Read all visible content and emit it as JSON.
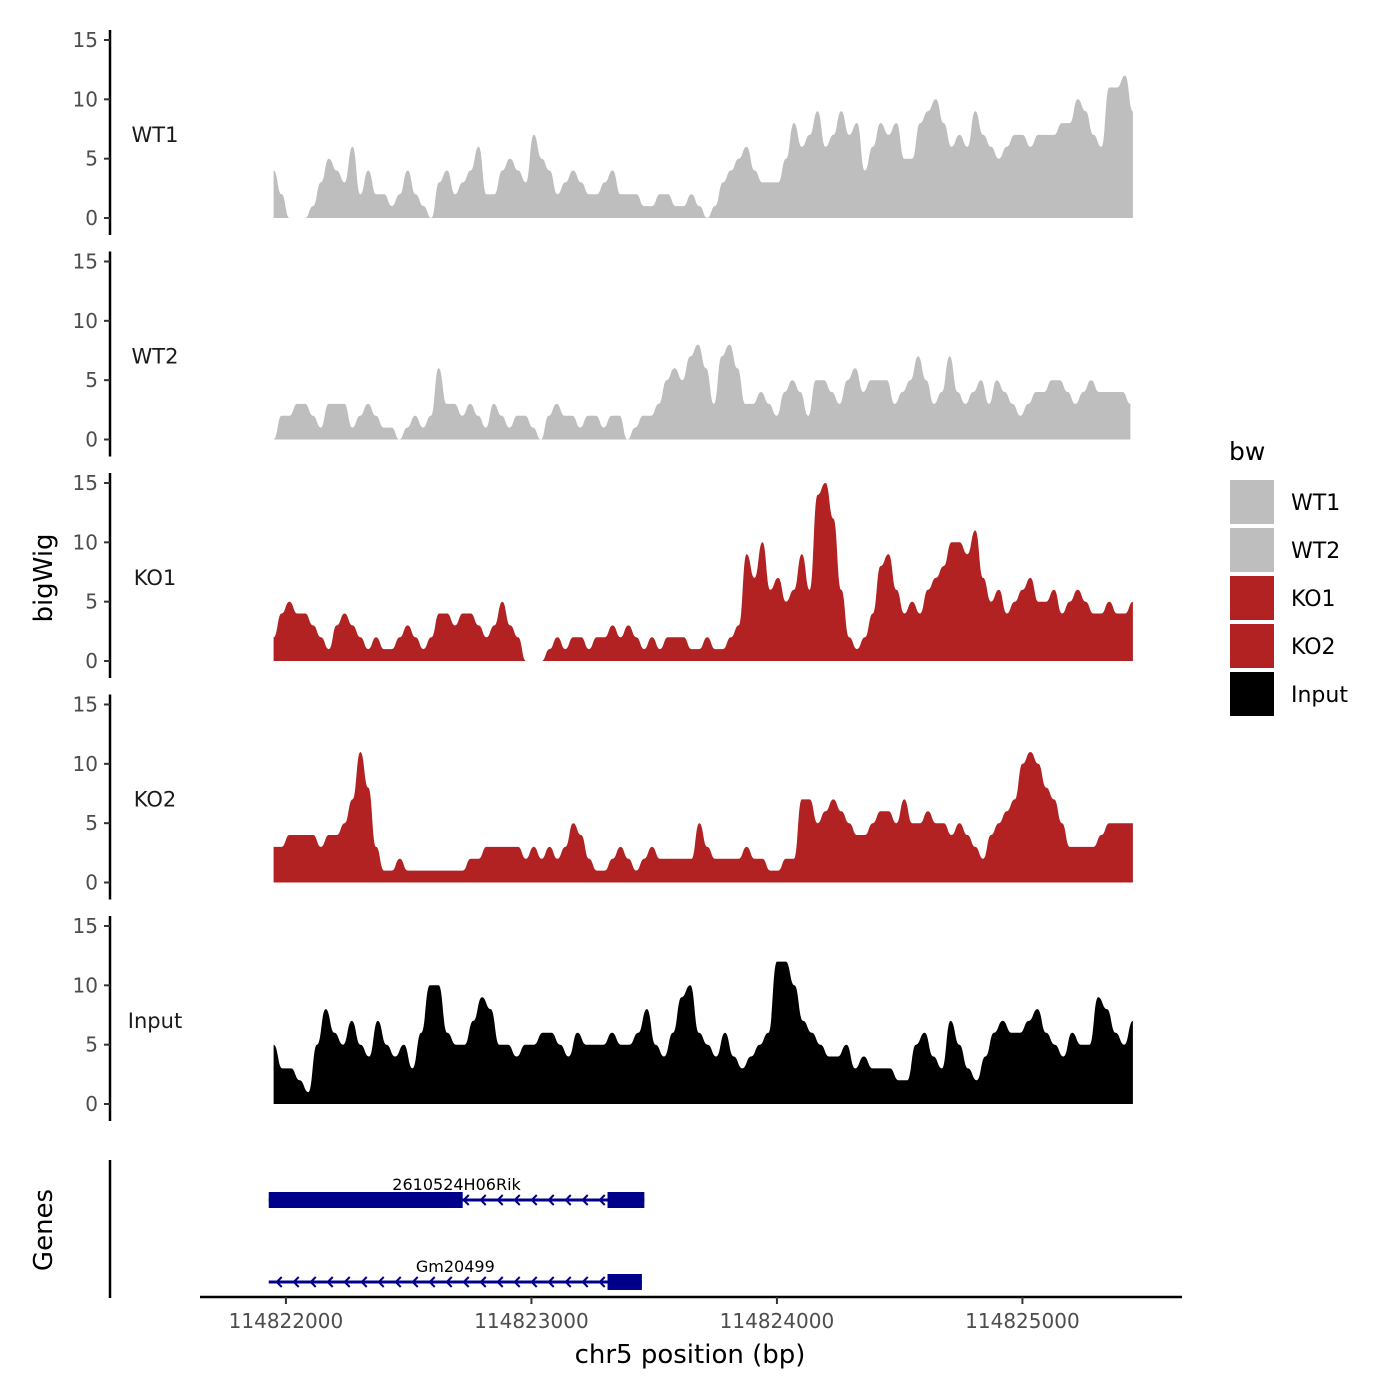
{
  "chart_data": {
    "type": "area",
    "ylabel": "bigWig",
    "xlabel": "chr5 position (bp)",
    "genes_label": "Genes",
    "legend": {
      "title": "bw",
      "entries": [
        {
          "name": "WT1",
          "color": "#bebebe"
        },
        {
          "name": "WT2",
          "color": "#bebebe"
        },
        {
          "name": "KO1",
          "color": "#b22222"
        },
        {
          "name": "KO2",
          "color": "#b22222"
        },
        {
          "name": "Input",
          "color": "#000000"
        }
      ]
    },
    "ylim": [
      0,
      15
    ],
    "yticks": [
      0,
      5,
      10,
      15
    ],
    "xlim": [
      114821650,
      114825650
    ],
    "xticks": [
      114822000,
      114823000,
      114824000,
      114825000
    ],
    "xtick_labels": [
      "114822000",
      "114823000",
      "114824000",
      "114825000"
    ],
    "series": [
      {
        "name": "WT1",
        "color": "#bebebe",
        "x_start": 114821950,
        "x_end": 114825450,
        "values": [
          4,
          2,
          0,
          0,
          0,
          1,
          3,
          5,
          4,
          3,
          6,
          2,
          4,
          2,
          2,
          1,
          2,
          4,
          2,
          1,
          0,
          3,
          4,
          2,
          3,
          4,
          6,
          2,
          2,
          4,
          5,
          4,
          3,
          7,
          5,
          4,
          2,
          3,
          4,
          3,
          2,
          2,
          3,
          4,
          2,
          2,
          2,
          1,
          1,
          2,
          2,
          1,
          1,
          2,
          1,
          0,
          1,
          3,
          4,
          5,
          6,
          4,
          3,
          3,
          3,
          5,
          8,
          6,
          7,
          9,
          6,
          7,
          9,
          7,
          8,
          4,
          6,
          8,
          7,
          8,
          5,
          5,
          8,
          9,
          10,
          8,
          6,
          7,
          6,
          9,
          7,
          6,
          5,
          6,
          7,
          7,
          6,
          7,
          7,
          7,
          8,
          8,
          10,
          9,
          7,
          6,
          11,
          11,
          12,
          9
        ]
      },
      {
        "name": "WT2",
        "color": "#bebebe",
        "x_start": 114821950,
        "x_end": 114825440,
        "values": [
          0,
          2,
          2,
          3,
          3,
          2,
          1,
          3,
          3,
          3,
          1,
          2,
          3,
          2,
          1,
          1,
          0,
          1,
          2,
          1,
          2,
          6,
          3,
          3,
          2,
          3,
          2,
          1,
          3,
          2,
          1,
          2,
          2,
          1,
          0,
          2,
          3,
          2,
          2,
          1,
          2,
          2,
          1,
          2,
          2,
          0,
          1,
          2,
          2,
          3,
          5,
          6,
          5,
          7,
          8,
          6,
          3,
          7,
          8,
          6,
          3,
          3,
          4,
          3,
          2,
          4,
          5,
          4,
          2,
          5,
          5,
          4,
          3,
          5,
          6,
          4,
          5,
          5,
          5,
          3,
          4,
          5,
          7,
          5,
          3,
          4,
          7,
          4,
          3,
          4,
          5,
          3,
          5,
          4,
          3,
          2,
          3,
          4,
          4,
          5,
          5,
          4,
          3,
          4,
          5,
          4,
          4,
          4,
          4,
          3
        ]
      },
      {
        "name": "KO1",
        "color": "#b22222",
        "x_start": 114821950,
        "x_end": 114825450,
        "values": [
          2,
          4,
          5,
          4,
          4,
          3,
          2,
          1,
          3,
          4,
          3,
          2,
          1,
          2,
          1,
          1,
          2,
          3,
          2,
          1,
          2,
          4,
          4,
          3,
          4,
          4,
          3,
          2,
          3,
          5,
          3,
          2,
          0,
          0,
          0,
          1,
          2,
          1,
          2,
          2,
          1,
          2,
          2,
          3,
          2,
          3,
          2,
          1,
          2,
          1,
          2,
          2,
          2,
          1,
          1,
          2,
          1,
          1,
          2,
          3,
          9,
          7,
          10,
          6,
          7,
          5,
          6,
          9,
          6,
          14,
          15,
          12,
          6,
          2,
          1,
          2,
          4,
          8,
          9,
          6,
          4,
          5,
          4,
          6,
          7,
          8,
          10,
          10,
          9,
          11,
          7,
          5,
          6,
          4,
          5,
          6,
          7,
          5,
          5,
          6,
          4,
          5,
          6,
          5,
          4,
          4,
          5,
          4,
          4,
          5
        ]
      },
      {
        "name": "KO2",
        "color": "#b22222",
        "x_start": 114821950,
        "x_end": 114825450,
        "values": [
          3,
          3,
          4,
          4,
          4,
          4,
          3,
          4,
          4,
          5,
          7,
          11,
          8,
          3,
          1,
          1,
          2,
          1,
          1,
          1,
          1,
          1,
          1,
          1,
          1,
          2,
          2,
          3,
          3,
          3,
          3,
          3,
          2,
          3,
          2,
          3,
          2,
          3,
          5,
          4,
          2,
          1,
          1,
          2,
          3,
          2,
          1,
          2,
          3,
          2,
          2,
          2,
          2,
          2,
          5,
          3,
          2,
          2,
          2,
          2,
          3,
          2,
          2,
          1,
          1,
          2,
          2,
          7,
          7,
          5,
          6,
          7,
          6,
          5,
          4,
          4,
          5,
          6,
          6,
          5,
          7,
          5,
          5,
          6,
          5,
          5,
          4,
          5,
          4,
          3,
          2,
          4,
          5,
          6,
          7,
          10,
          11,
          10,
          8,
          7,
          5,
          3,
          3,
          3,
          3,
          4,
          5,
          5,
          5,
          5
        ]
      },
      {
        "name": "Input",
        "color": "#000000",
        "x_start": 114821950,
        "x_end": 114825450,
        "values": [
          5,
          3,
          3,
          2,
          1,
          5,
          8,
          6,
          5,
          7,
          5,
          4,
          7,
          5,
          4,
          5,
          3,
          6,
          10,
          10,
          6,
          5,
          5,
          7,
          9,
          8,
          5,
          5,
          4,
          5,
          5,
          6,
          6,
          5,
          4,
          6,
          5,
          5,
          5,
          6,
          5,
          5,
          6,
          8,
          5,
          4,
          6,
          9,
          10,
          6,
          5,
          4,
          6,
          4,
          3,
          4,
          5,
          6,
          12,
          12,
          10,
          7,
          6,
          5,
          4,
          4,
          5,
          3,
          4,
          3,
          3,
          3,
          2,
          2,
          5,
          6,
          4,
          3,
          7,
          5,
          3,
          2,
          4,
          6,
          7,
          6,
          6,
          7,
          8,
          6,
          5,
          4,
          6,
          5,
          5,
          9,
          8,
          6,
          5,
          7
        ]
      }
    ],
    "genes": [
      {
        "name": "2610524H06Rik",
        "strand": "-",
        "start": 114821930,
        "end": 114823460,
        "exons": [
          [
            114821930,
            114822720
          ],
          [
            114823310,
            114823460
          ]
        ]
      },
      {
        "name": "Gm20499",
        "strand": "-",
        "start": 114821930,
        "end": 114823450,
        "exons": [
          [
            114823310,
            114823450
          ]
        ]
      }
    ]
  }
}
